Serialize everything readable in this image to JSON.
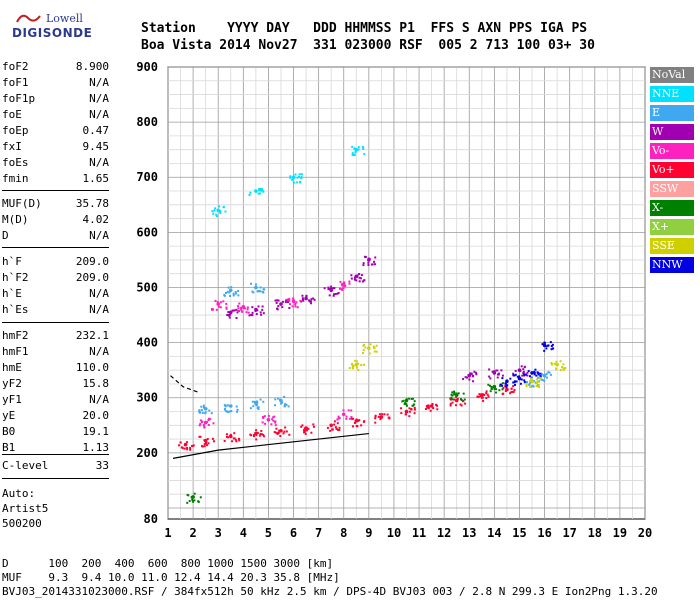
{
  "logo": {
    "line1": "Lowell",
    "line2": "DIGISONDE"
  },
  "header": {
    "line1": "Station    YYYY DAY   DDD HHMMSS P1  FFS S AXN PPS IGA PS",
    "line2": "Boa Vista 2014 Nov27  331 023000 RSF  005 2 713 100 03+ 30"
  },
  "params": [
    {
      "key": "foF2",
      "value": "8.900"
    },
    {
      "key": "foF1",
      "value": "N/A"
    },
    {
      "key": "foF1p",
      "value": "N/A"
    },
    {
      "key": "foE",
      "value": "N/A"
    },
    {
      "key": "foEp",
      "value": "0.47"
    },
    {
      "key": "fxI",
      "value": "9.45"
    },
    {
      "key": "foEs",
      "value": "N/A"
    },
    {
      "key": "fmin",
      "value": "1.65"
    },
    {
      "key": "MUF(D)",
      "value": "35.78"
    },
    {
      "key": "M(D)",
      "value": "4.02"
    },
    {
      "key": "D",
      "value": "N/A"
    },
    {
      "key": "h`F",
      "value": "209.0"
    },
    {
      "key": "h`F2",
      "value": "209.0"
    },
    {
      "key": "h`E",
      "value": "N/A"
    },
    {
      "key": "h`Es",
      "value": "N/A"
    },
    {
      "key": "hmF2",
      "value": "232.1"
    },
    {
      "key": "hmF1",
      "value": "N/A"
    },
    {
      "key": "hmE",
      "value": "110.0"
    },
    {
      "key": "yF2",
      "value": "15.8"
    },
    {
      "key": "yF1",
      "value": "N/A"
    },
    {
      "key": "yE",
      "value": "20.0"
    },
    {
      "key": "B0",
      "value": "19.1"
    },
    {
      "key": "B1",
      "value": "1.13"
    },
    {
      "key": "C-level",
      "value": "33"
    }
  ],
  "artist": {
    "line1": "Auto:",
    "line2": "Artist5",
    "line3": "500200"
  },
  "footer": {
    "d_line": "D      100  200  400  600  800 1000 1500 3000 [km]",
    "muf_line": "MUF    9.3  9.4 10.0 11.0 12.4 14.4 20.3 35.8 [MHz]",
    "info_line": "BVJ03_2014331023000.RSF / 384fx512h 50 kHz 2.5 km / DPS-4D BVJ03 003 / 2.8 N 299.3 E Ion2Png 1.3.20"
  },
  "legend": [
    {
      "label": "NoVal",
      "color": "#808080"
    },
    {
      "label": "NNE",
      "color": "#00e0ff"
    },
    {
      "label": "E",
      "color": "#40a8f0"
    },
    {
      "label": "W",
      "color": "#a000b0"
    },
    {
      "label": "Vo-",
      "color": "#ff20c0"
    },
    {
      "label": "Vo+",
      "color": "#ff0030"
    },
    {
      "label": "SSW",
      "color": "#ffa0a0"
    },
    {
      "label": "X-",
      "color": "#008000"
    },
    {
      "label": "X+",
      "color": "#90d040"
    },
    {
      "label": "SSE",
      "color": "#d0d000"
    },
    {
      "label": "NNW",
      "color": "#0000e0"
    }
  ],
  "chart_data": {
    "type": "scatter",
    "x_ticks": [
      "1",
      "2",
      "3",
      "4",
      "5",
      "6",
      "7",
      "8",
      "9",
      "10",
      "11",
      "12",
      "13",
      "14",
      "15",
      "16",
      "17",
      "18",
      "19",
      "20"
    ],
    "y_ticks": [
      "80",
      "200",
      "300",
      "400",
      "500",
      "600",
      "700",
      "800",
      "900"
    ],
    "xlim": [
      1,
      20
    ],
    "ylim": [
      80,
      900
    ],
    "grid": true,
    "legend_position": "right",
    "series": [
      {
        "name": "Vo+",
        "color": "#ff0030",
        "points": [
          [
            1.7,
            215
          ],
          [
            2.5,
            222
          ],
          [
            3.5,
            230
          ],
          [
            4.5,
            235
          ],
          [
            5.5,
            240
          ],
          [
            6.5,
            245
          ],
          [
            7.5,
            250
          ],
          [
            8.5,
            258
          ],
          [
            9.5,
            265
          ],
          [
            10.5,
            275
          ],
          [
            11.5,
            285
          ],
          [
            12.5,
            295
          ],
          [
            13.5,
            305
          ],
          [
            14.5,
            315
          ]
        ]
      },
      {
        "name": "W",
        "color": "#a000b0",
        "points": [
          [
            3.5,
            455
          ],
          [
            4.5,
            460
          ],
          [
            5.5,
            470
          ],
          [
            6.5,
            480
          ],
          [
            7.5,
            495
          ],
          [
            8.5,
            520
          ],
          [
            9.0,
            550
          ],
          [
            13,
            340
          ],
          [
            14,
            345
          ],
          [
            15,
            350
          ]
        ]
      },
      {
        "name": "Vo-",
        "color": "#ff20c0",
        "points": [
          [
            3.0,
            470
          ],
          [
            4.0,
            465
          ],
          [
            6.0,
            475
          ],
          [
            8.0,
            505
          ],
          [
            2.5,
            255
          ],
          [
            5.0,
            260
          ],
          [
            8.0,
            270
          ]
        ]
      },
      {
        "name": "E",
        "color": "#40a8f0",
        "points": [
          [
            2.5,
            280
          ],
          [
            3.5,
            285
          ],
          [
            4.5,
            290
          ],
          [
            5.5,
            295
          ],
          [
            15.5,
            330
          ],
          [
            16,
            340
          ],
          [
            3.5,
            495
          ],
          [
            4.5,
            500
          ]
        ]
      },
      {
        "name": "NNW",
        "color": "#0000e0",
        "points": [
          [
            14.5,
            330
          ],
          [
            15.0,
            335
          ],
          [
            15.5,
            345
          ],
          [
            16.0,
            395
          ]
        ]
      },
      {
        "name": "X-",
        "color": "#008000",
        "points": [
          [
            2.0,
            120
          ],
          [
            10.5,
            295
          ],
          [
            12.5,
            305
          ],
          [
            14,
            320
          ]
        ]
      },
      {
        "name": "NNE",
        "color": "#00e0ff",
        "points": [
          [
            3,
            640
          ],
          [
            4.5,
            675
          ],
          [
            6,
            700
          ],
          [
            8.5,
            750
          ]
        ]
      },
      {
        "name": "SSE",
        "color": "#d0d000",
        "points": [
          [
            8.5,
            360
          ],
          [
            9.0,
            390
          ],
          [
            15.5,
            330
          ],
          [
            16.5,
            360
          ]
        ]
      }
    ]
  }
}
